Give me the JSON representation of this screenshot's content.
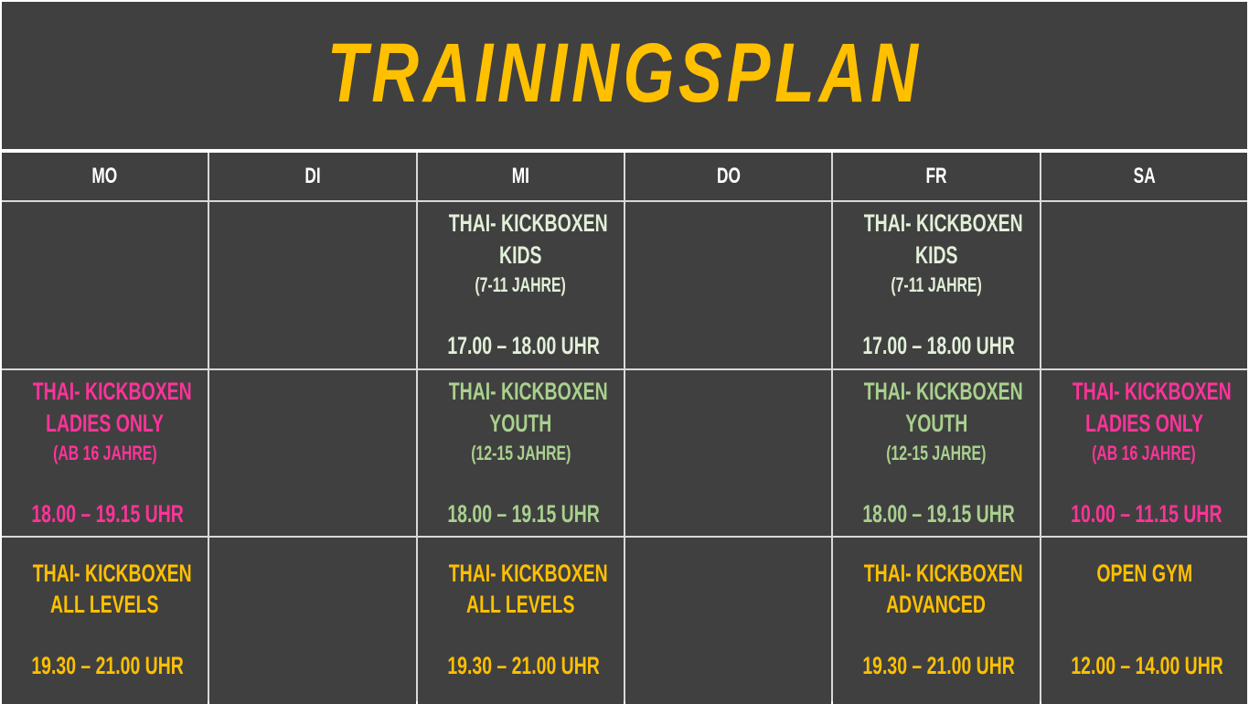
{
  "title": "TRAININGSPLAN",
  "colors": {
    "background": "#404040",
    "title": "#ffc000",
    "kids": "#e2f0d9",
    "youth": "#a9d18e",
    "ladies": "#ff3399",
    "adult": "#ffc000",
    "header": "#ffffff"
  },
  "days": [
    "MO",
    "DI",
    "MI",
    "DO",
    "FR",
    "SA"
  ],
  "rows": [
    [
      null,
      null,
      {
        "style": "kids",
        "lines": [
          "THAI- KICKBOXEN",
          "KIDS"
        ],
        "sub": "(7-11 JAHRE)",
        "time": "17.00 – 18.00 UHR"
      },
      null,
      {
        "style": "kids",
        "lines": [
          "THAI- KICKBOXEN",
          "KIDS"
        ],
        "sub": "(7-11 JAHRE)",
        "time": "17.00 – 18.00 UHR"
      },
      null
    ],
    [
      {
        "style": "ladies",
        "lines": [
          "THAI- KICKBOXEN",
          "LADIES ONLY"
        ],
        "sub": "(AB 16 JAHRE)",
        "time": "18.00 – 19.15 UHR"
      },
      null,
      {
        "style": "youth",
        "lines": [
          "THAI- KICKBOXEN",
          "YOUTH"
        ],
        "sub": "(12-15 JAHRE)",
        "time": "18.00 – 19.15 UHR"
      },
      null,
      {
        "style": "youth",
        "lines": [
          "THAI- KICKBOXEN",
          "YOUTH"
        ],
        "sub": "(12-15 JAHRE)",
        "time": "18.00 – 19.15 UHR"
      },
      {
        "style": "ladies",
        "lines": [
          "THAI- KICKBOXEN",
          "LADIES ONLY"
        ],
        "sub": "(AB 16 JAHRE)",
        "time": "10.00 – 11.15 UHR"
      }
    ],
    [
      {
        "style": "adult",
        "lines": [
          "THAI- KICKBOXEN",
          "ALL LEVELS"
        ],
        "time": "19.30 – 21.00 UHR"
      },
      null,
      {
        "style": "adult",
        "lines": [
          "THAI- KICKBOXEN",
          "ALL LEVELS"
        ],
        "time": "19.30 – 21.00 UHR"
      },
      null,
      {
        "style": "adult",
        "lines": [
          "THAI- KICKBOXEN",
          "ADVANCED"
        ],
        "time": "19.30 – 21.00 UHR"
      },
      {
        "style": "adult",
        "lines": [
          "OPEN GYM"
        ],
        "time": "12.00 – 14.00 UHR"
      }
    ]
  ]
}
